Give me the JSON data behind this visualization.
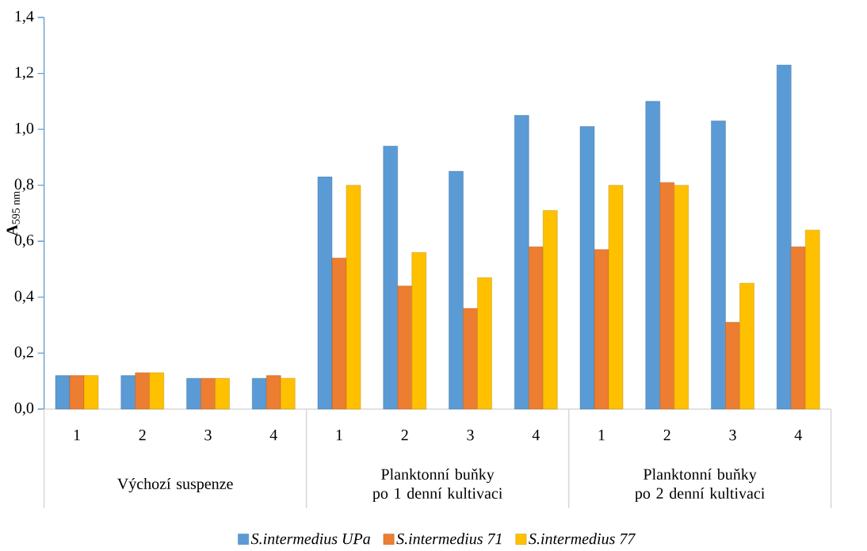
{
  "chart_data": {
    "type": "bar",
    "categories": [
      "1",
      "2",
      "3",
      "4",
      "1",
      "2",
      "3",
      "4",
      "1",
      "2",
      "3",
      "4"
    ],
    "annotations": [
      "Výchozí suspenze",
      "Planktonní buňky po 1 denní kultivaci",
      "Planktonní buňky po 2 denní kultivaci"
    ],
    "ylabel": "**A**$_{595 nm}$",
    "series": [
      {
        "name": "S.intermedius UPa",
        "color": "#5b9bd5",
        "values": [
          0.12,
          0.12,
          0.11,
          0.11,
          0.83,
          0.94,
          0.85,
          1.05,
          1.01,
          1.1,
          1.03,
          1.23
        ]
      },
      {
        "name": "S.intermedius 71",
        "color": "#ed7d31",
        "values": [
          0.12,
          0.13,
          0.11,
          0.12,
          0.54,
          0.44,
          0.36,
          0.58,
          0.57,
          0.81,
          0.31,
          0.58
        ]
      },
      {
        "name": "S.intermedius 77",
        "color": "#ffc000",
        "values": [
          0.12,
          0.13,
          0.11,
          0.11,
          0.8,
          0.56,
          0.47,
          0.71,
          0.8,
          0.8,
          0.45,
          0.64
        ]
      }
    ],
    "ylim": [
      0,
      1.4
    ],
    "yticks": [
      {
        "value": 0,
        "label": "0,0"
      },
      {
        "value": 0.2,
        "label": "0,2"
      },
      {
        "value": 0.4,
        "label": "0,4"
      },
      {
        "value": 0.6,
        "label": "0,6"
      },
      {
        "value": 0.8,
        "label": "0,8"
      },
      {
        "value": 1.0,
        "label": "1,0"
      },
      {
        "value": 1.2,
        "label": "1,2"
      },
      {
        "value": 1.4,
        "label": "1,4"
      }
    ],
    "grid": false,
    "legend": "bottom"
  }
}
